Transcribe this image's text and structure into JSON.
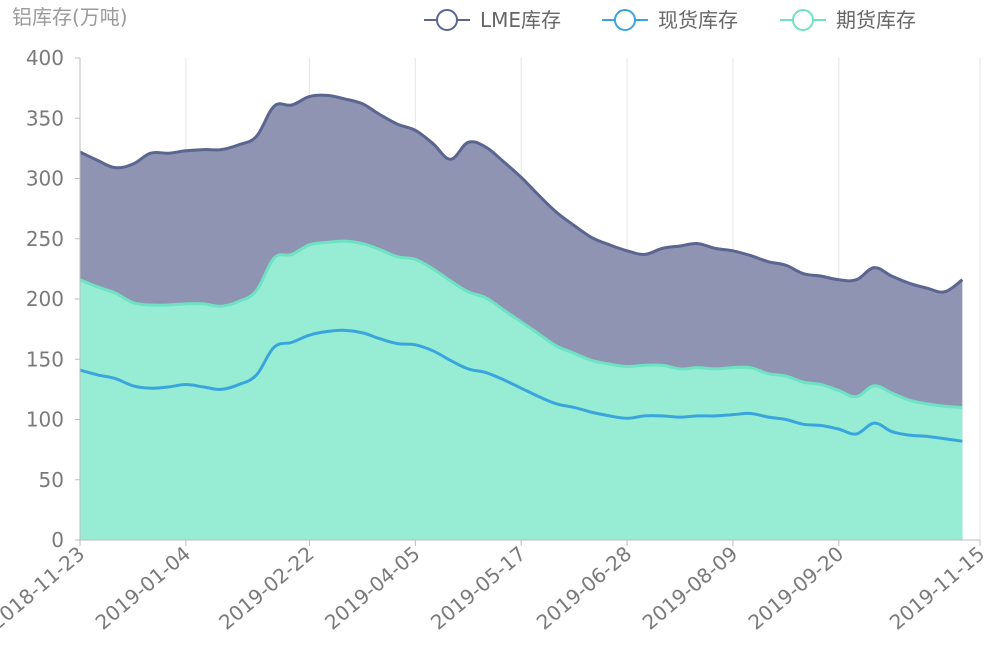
{
  "chart_data": {
    "type": "area",
    "ylabel": "铝库存(万吨)",
    "ylim": [
      0,
      400
    ],
    "yticks": [
      0,
      50,
      100,
      150,
      200,
      250,
      300,
      350,
      400
    ],
    "xticks": [
      "2018-11-23",
      "2019-01-04",
      "2019-02-22",
      "2019-04-05",
      "2019-05-17",
      "2019-06-28",
      "2019-08-09",
      "2019-09-20",
      "2019-11-15"
    ],
    "x": [
      "2018-11-23",
      "2018-11-30",
      "2018-12-07",
      "2018-12-14",
      "2018-12-21",
      "2018-12-28",
      "2019-01-04",
      "2019-01-11",
      "2019-01-18",
      "2019-01-25",
      "2019-02-01",
      "2019-02-08",
      "2019-02-15",
      "2019-02-22",
      "2019-03-01",
      "2019-03-08",
      "2019-03-15",
      "2019-03-22",
      "2019-03-29",
      "2019-04-05",
      "2019-04-12",
      "2019-04-19",
      "2019-04-26",
      "2019-05-03",
      "2019-05-10",
      "2019-05-17",
      "2019-05-24",
      "2019-05-31",
      "2019-06-07",
      "2019-06-14",
      "2019-06-21",
      "2019-06-28",
      "2019-07-05",
      "2019-07-12",
      "2019-07-19",
      "2019-07-26",
      "2019-08-02",
      "2019-08-09",
      "2019-08-16",
      "2019-08-23",
      "2019-08-30",
      "2019-09-06",
      "2019-09-13",
      "2019-09-20",
      "2019-09-27",
      "2019-10-04",
      "2019-10-11",
      "2019-10-18",
      "2019-10-25",
      "2019-11-01",
      "2019-11-08",
      "2019-11-15"
    ],
    "legend_position": "top-right",
    "grid": "vertical",
    "series": [
      {
        "name": "LME库存",
        "color": "#5a6590",
        "fill": "#8e94b2",
        "values": [
          322,
          315,
          309,
          312,
          321,
          321,
          323,
          324,
          324,
          328,
          335,
          360,
          361,
          368,
          369,
          366,
          362,
          353,
          345,
          340,
          329,
          316,
          330,
          326,
          314,
          301,
          286,
          272,
          261,
          251,
          245,
          240,
          237,
          242,
          244,
          246,
          242,
          240,
          236,
          231,
          228,
          221,
          219,
          216,
          216,
          226,
          219,
          213,
          209,
          206,
          216,
          null
        ]
      },
      {
        "name": "现货库存",
        "color": "#3aa5dc",
        "fill": "#74c6ec",
        "values": [
          141,
          137,
          134,
          128,
          126,
          127,
          129,
          127,
          125,
          129,
          137,
          160,
          164,
          170,
          173,
          174,
          172,
          167,
          163,
          162,
          157,
          149,
          142,
          139,
          133,
          126,
          119,
          113,
          110,
          106,
          103,
          101,
          103,
          103,
          102,
          103,
          103,
          104,
          105,
          102,
          100,
          96,
          95,
          92,
          88,
          97,
          90,
          87,
          86,
          84,
          82,
          null
        ]
      },
      {
        "name": "期货库存",
        "color": "#6ee2c2",
        "fill": "#97ecd4",
        "values": [
          216,
          210,
          205,
          197,
          195,
          195,
          196,
          196,
          194,
          198,
          207,
          234,
          237,
          245,
          247,
          248,
          246,
          241,
          235,
          233,
          225,
          215,
          206,
          201,
          191,
          181,
          171,
          161,
          155,
          149,
          146,
          144,
          145,
          145,
          142,
          143,
          142,
          143,
          143,
          138,
          136,
          131,
          129,
          124,
          119,
          128,
          122,
          116,
          113,
          111,
          110,
          null
        ]
      }
    ]
  }
}
